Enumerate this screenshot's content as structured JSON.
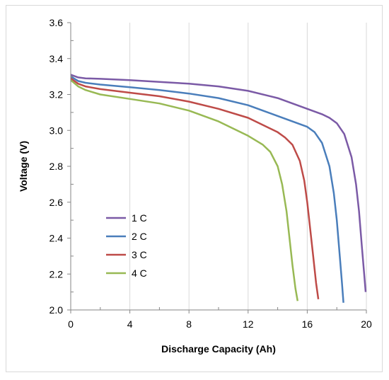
{
  "chart_data": {
    "type": "line",
    "title": "",
    "xlabel": "Discharge Capacity (Ah)",
    "ylabel": "Voltage (V)",
    "xlim": [
      0,
      20
    ],
    "ylim": [
      2.0,
      3.6
    ],
    "x_ticks": [
      0,
      4,
      8,
      12,
      16,
      20
    ],
    "y_ticks": [
      2.0,
      2.2,
      2.4,
      2.6,
      2.8,
      3.0,
      3.2,
      3.4,
      3.6
    ],
    "x_tick_labels": [
      "0",
      "4",
      "8",
      "12",
      "16",
      "20"
    ],
    "y_tick_labels": [
      "2.0",
      "2.2",
      "2.4",
      "2.6",
      "2.8",
      "3.0",
      "3.2",
      "3.4",
      "3.6"
    ],
    "grid": "vertical",
    "legend_position": "lower-left",
    "series": [
      {
        "name": "1 C",
        "color": "#7b5aa6",
        "points": [
          [
            0,
            3.31
          ],
          [
            0.5,
            3.295
          ],
          [
            1,
            3.29
          ],
          [
            2,
            3.287
          ],
          [
            4,
            3.28
          ],
          [
            6,
            3.27
          ],
          [
            8,
            3.26
          ],
          [
            10,
            3.245
          ],
          [
            12,
            3.22
          ],
          [
            14,
            3.18
          ],
          [
            15,
            3.15
          ],
          [
            16,
            3.12
          ],
          [
            17,
            3.09
          ],
          [
            17.5,
            3.07
          ],
          [
            18,
            3.04
          ],
          [
            18.5,
            2.98
          ],
          [
            19,
            2.85
          ],
          [
            19.3,
            2.7
          ],
          [
            19.5,
            2.55
          ],
          [
            19.7,
            2.35
          ],
          [
            19.85,
            2.2
          ],
          [
            19.95,
            2.1
          ]
        ]
      },
      {
        "name": "2 C",
        "color": "#4a7ebb",
        "points": [
          [
            0,
            3.3
          ],
          [
            0.5,
            3.275
          ],
          [
            1,
            3.265
          ],
          [
            2,
            3.255
          ],
          [
            4,
            3.24
          ],
          [
            6,
            3.225
          ],
          [
            8,
            3.205
          ],
          [
            10,
            3.18
          ],
          [
            12,
            3.14
          ],
          [
            13,
            3.11
          ],
          [
            14,
            3.08
          ],
          [
            15,
            3.05
          ],
          [
            16,
            3.02
          ],
          [
            16.5,
            2.99
          ],
          [
            17,
            2.93
          ],
          [
            17.5,
            2.8
          ],
          [
            17.8,
            2.65
          ],
          [
            18,
            2.5
          ],
          [
            18.2,
            2.3
          ],
          [
            18.35,
            2.15
          ],
          [
            18.45,
            2.04
          ]
        ]
      },
      {
        "name": "3 C",
        "color": "#be4b48",
        "points": [
          [
            0,
            3.29
          ],
          [
            0.5,
            3.26
          ],
          [
            1,
            3.245
          ],
          [
            2,
            3.23
          ],
          [
            4,
            3.21
          ],
          [
            6,
            3.19
          ],
          [
            8,
            3.16
          ],
          [
            10,
            3.12
          ],
          [
            12,
            3.07
          ],
          [
            13,
            3.03
          ],
          [
            14,
            2.99
          ],
          [
            14.5,
            2.96
          ],
          [
            15,
            2.92
          ],
          [
            15.5,
            2.83
          ],
          [
            15.8,
            2.72
          ],
          [
            16,
            2.6
          ],
          [
            16.2,
            2.45
          ],
          [
            16.4,
            2.3
          ],
          [
            16.6,
            2.15
          ],
          [
            16.75,
            2.06
          ]
        ]
      },
      {
        "name": "4 C",
        "color": "#98b954",
        "points": [
          [
            0,
            3.28
          ],
          [
            0.5,
            3.245
          ],
          [
            1,
            3.225
          ],
          [
            2,
            3.2
          ],
          [
            4,
            3.175
          ],
          [
            6,
            3.15
          ],
          [
            8,
            3.11
          ],
          [
            10,
            3.05
          ],
          [
            11,
            3.01
          ],
          [
            12,
            2.97
          ],
          [
            13,
            2.92
          ],
          [
            13.5,
            2.88
          ],
          [
            14,
            2.8
          ],
          [
            14.3,
            2.7
          ],
          [
            14.6,
            2.55
          ],
          [
            14.8,
            2.4
          ],
          [
            15,
            2.25
          ],
          [
            15.2,
            2.12
          ],
          [
            15.35,
            2.05
          ]
        ]
      }
    ]
  }
}
